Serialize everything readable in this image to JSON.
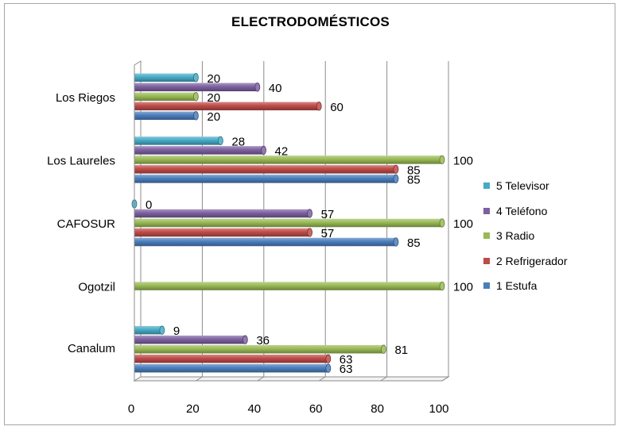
{
  "chart_data": {
    "type": "bar",
    "orientation": "horizontal",
    "title": "ELECTRODOMÉSTICOS",
    "xlabel": "",
    "ylabel": "",
    "xlim": [
      0,
      100
    ],
    "x_ticks": [
      "0",
      "20",
      "40",
      "60",
      "80",
      "100"
    ],
    "grid": true,
    "legend_position": "right",
    "categories": [
      "Canalum",
      "Ogotzil",
      "CAFOSUR",
      "Los Laureles",
      "Los Riegos"
    ],
    "series": [
      {
        "name": "1 Estufa",
        "color": "#4a7ebb",
        "values": [
          63,
          null,
          85,
          85,
          20
        ]
      },
      {
        "name": "2 Refrigerador",
        "color": "#be4b48",
        "values": [
          63,
          null,
          57,
          85,
          60
        ]
      },
      {
        "name": "3 Radio",
        "color": "#98b954",
        "values": [
          81,
          100,
          100,
          100,
          20
        ]
      },
      {
        "name": "4 Teléfono",
        "color": "#7d60a0",
        "values": [
          36,
          null,
          57,
          42,
          40
        ]
      },
      {
        "name": "5 Televisor",
        "color": "#46aac5",
        "values": [
          9,
          null,
          0,
          28,
          20
        ]
      }
    ]
  }
}
